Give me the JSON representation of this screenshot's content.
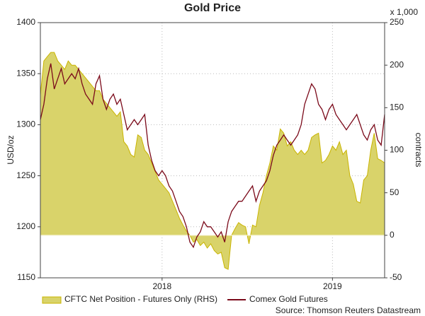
{
  "chart_data": {
    "type": "combo",
    "title": "Gold Price",
    "ylabel": "USD/oz",
    "y2label": "contracts",
    "y2unit": "x 1,000",
    "source": "Source: Thomson Reuters Datastream",
    "categories": [
      null,
      null,
      null,
      null,
      null,
      null,
      null,
      null,
      null,
      null,
      null,
      null,
      null,
      null,
      null,
      null,
      null,
      null,
      null,
      null,
      null,
      null,
      null,
      null,
      null,
      null,
      null,
      null,
      null,
      null,
      null,
      null,
      null,
      null,
      null,
      "2018",
      null,
      null,
      null,
      null,
      null,
      null,
      null,
      null,
      null,
      null,
      null,
      null,
      null,
      null,
      null,
      null,
      null,
      null,
      null,
      null,
      null,
      null,
      null,
      null,
      null,
      null,
      null,
      null,
      null,
      null,
      null,
      null,
      null,
      null,
      null,
      null,
      null,
      null,
      null,
      null,
      null,
      null,
      null,
      null,
      null,
      null,
      null,
      null,
      "2019",
      null,
      null,
      null,
      null,
      null,
      null,
      null,
      null,
      null,
      null,
      null,
      null,
      null,
      null,
      null
    ],
    "ylim": [
      1150,
      1400
    ],
    "yticks": [
      1150,
      1200,
      1250,
      1300,
      1350,
      1400
    ],
    "y2lim": [
      -50,
      250
    ],
    "y2ticks": [
      -50,
      0,
      50,
      100,
      150,
      200,
      250
    ],
    "grid": true,
    "legend": "bottom",
    "series": [
      {
        "name": "CFTC Net Position - Futures Only (RHS)",
        "type": "area",
        "axis": "y2",
        "color": "#d9d36a",
        "values": [
          165,
          205,
          210,
          215,
          215,
          205,
          200,
          195,
          205,
          200,
          200,
          195,
          190,
          185,
          180,
          175,
          170,
          170,
          160,
          155,
          150,
          145,
          140,
          145,
          110,
          105,
          95,
          92,
          118,
          115,
          100,
          95,
          85,
          75,
          65,
          60,
          55,
          50,
          40,
          30,
          20,
          12,
          5,
          0,
          -8,
          -5,
          -12,
          -8,
          -15,
          -10,
          -18,
          -22,
          -20,
          -38,
          -40,
          0,
          8,
          15,
          12,
          10,
          -10,
          12,
          10,
          35,
          50,
          70,
          85,
          105,
          100,
          125,
          120,
          105,
          110,
          100,
          95,
          100,
          95,
          100,
          115,
          118,
          120,
          85,
          88,
          95,
          105,
          100,
          110,
          95,
          100,
          70,
          60,
          40,
          38,
          65,
          70,
          100,
          120,
          90,
          88,
          85
        ]
      },
      {
        "name": "Comex Gold Futures",
        "type": "line",
        "color": "#7b0a1a",
        "values": [
          1305,
          1320,
          1345,
          1360,
          1335,
          1345,
          1355,
          1340,
          1345,
          1350,
          1345,
          1355,
          1340,
          1330,
          1325,
          1320,
          1340,
          1348,
          1325,
          1315,
          1325,
          1330,
          1320,
          1325,
          1310,
          1295,
          1300,
          1305,
          1300,
          1305,
          1310,
          1280,
          1265,
          1255,
          1250,
          1255,
          1250,
          1240,
          1235,
          1225,
          1215,
          1210,
          1200,
          1185,
          1180,
          1190,
          1195,
          1205,
          1200,
          1200,
          1195,
          1190,
          1195,
          1185,
          1205,
          1215,
          1220,
          1225,
          1225,
          1230,
          1235,
          1240,
          1225,
          1235,
          1240,
          1245,
          1255,
          1270,
          1280,
          1285,
          1290,
          1285,
          1280,
          1285,
          1290,
          1300,
          1320,
          1330,
          1340,
          1335,
          1320,
          1315,
          1305,
          1315,
          1320,
          1310,
          1305,
          1300,
          1295,
          1300,
          1305,
          1310,
          1300,
          1290,
          1285,
          1295,
          1300,
          1285,
          1280,
          1310
        ]
      }
    ]
  }
}
